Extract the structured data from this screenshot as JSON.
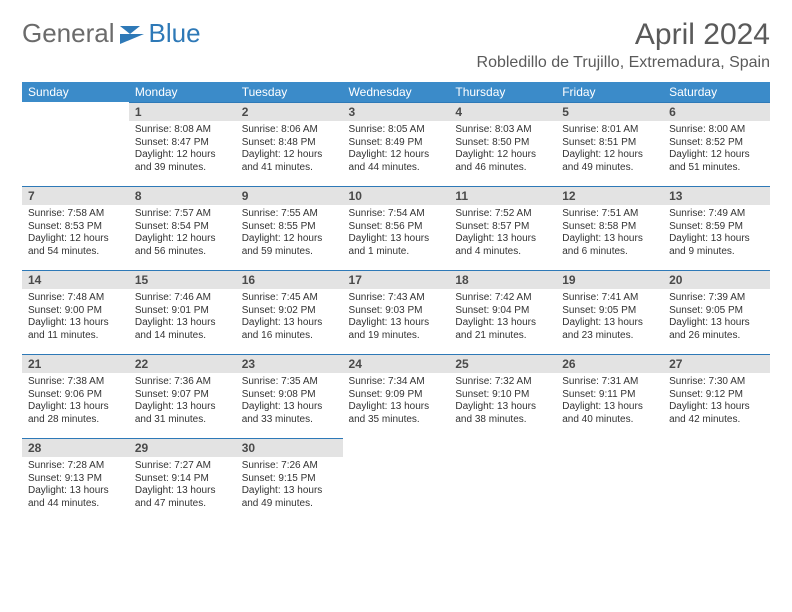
{
  "brand": {
    "part1": "General",
    "part2": "Blue"
  },
  "title": {
    "month": "April 2024",
    "location": "Robledillo de Trujillo, Extremadura, Spain"
  },
  "colors": {
    "header_bg": "#3b8bc9",
    "daynum_bg": "#e3e3e3",
    "day_border": "#2e79b7",
    "text": "#333333",
    "muted": "#5a5a5a"
  },
  "weekdays": [
    "Sunday",
    "Monday",
    "Tuesday",
    "Wednesday",
    "Thursday",
    "Friday",
    "Saturday"
  ],
  "weeks": [
    [
      {
        "n": "",
        "s": "",
        "t": "",
        "d1": "",
        "d2": "",
        "empty": true
      },
      {
        "n": "1",
        "s": "Sunrise: 8:08 AM",
        "t": "Sunset: 8:47 PM",
        "d1": "Daylight: 12 hours",
        "d2": "and 39 minutes."
      },
      {
        "n": "2",
        "s": "Sunrise: 8:06 AM",
        "t": "Sunset: 8:48 PM",
        "d1": "Daylight: 12 hours",
        "d2": "and 41 minutes."
      },
      {
        "n": "3",
        "s": "Sunrise: 8:05 AM",
        "t": "Sunset: 8:49 PM",
        "d1": "Daylight: 12 hours",
        "d2": "and 44 minutes."
      },
      {
        "n": "4",
        "s": "Sunrise: 8:03 AM",
        "t": "Sunset: 8:50 PM",
        "d1": "Daylight: 12 hours",
        "d2": "and 46 minutes."
      },
      {
        "n": "5",
        "s": "Sunrise: 8:01 AM",
        "t": "Sunset: 8:51 PM",
        "d1": "Daylight: 12 hours",
        "d2": "and 49 minutes."
      },
      {
        "n": "6",
        "s": "Sunrise: 8:00 AM",
        "t": "Sunset: 8:52 PM",
        "d1": "Daylight: 12 hours",
        "d2": "and 51 minutes."
      }
    ],
    [
      {
        "n": "7",
        "s": "Sunrise: 7:58 AM",
        "t": "Sunset: 8:53 PM",
        "d1": "Daylight: 12 hours",
        "d2": "and 54 minutes."
      },
      {
        "n": "8",
        "s": "Sunrise: 7:57 AM",
        "t": "Sunset: 8:54 PM",
        "d1": "Daylight: 12 hours",
        "d2": "and 56 minutes."
      },
      {
        "n": "9",
        "s": "Sunrise: 7:55 AM",
        "t": "Sunset: 8:55 PM",
        "d1": "Daylight: 12 hours",
        "d2": "and 59 minutes."
      },
      {
        "n": "10",
        "s": "Sunrise: 7:54 AM",
        "t": "Sunset: 8:56 PM",
        "d1": "Daylight: 13 hours",
        "d2": "and 1 minute."
      },
      {
        "n": "11",
        "s": "Sunrise: 7:52 AM",
        "t": "Sunset: 8:57 PM",
        "d1": "Daylight: 13 hours",
        "d2": "and 4 minutes."
      },
      {
        "n": "12",
        "s": "Sunrise: 7:51 AM",
        "t": "Sunset: 8:58 PM",
        "d1": "Daylight: 13 hours",
        "d2": "and 6 minutes."
      },
      {
        "n": "13",
        "s": "Sunrise: 7:49 AM",
        "t": "Sunset: 8:59 PM",
        "d1": "Daylight: 13 hours",
        "d2": "and 9 minutes."
      }
    ],
    [
      {
        "n": "14",
        "s": "Sunrise: 7:48 AM",
        "t": "Sunset: 9:00 PM",
        "d1": "Daylight: 13 hours",
        "d2": "and 11 minutes."
      },
      {
        "n": "15",
        "s": "Sunrise: 7:46 AM",
        "t": "Sunset: 9:01 PM",
        "d1": "Daylight: 13 hours",
        "d2": "and 14 minutes."
      },
      {
        "n": "16",
        "s": "Sunrise: 7:45 AM",
        "t": "Sunset: 9:02 PM",
        "d1": "Daylight: 13 hours",
        "d2": "and 16 minutes."
      },
      {
        "n": "17",
        "s": "Sunrise: 7:43 AM",
        "t": "Sunset: 9:03 PM",
        "d1": "Daylight: 13 hours",
        "d2": "and 19 minutes."
      },
      {
        "n": "18",
        "s": "Sunrise: 7:42 AM",
        "t": "Sunset: 9:04 PM",
        "d1": "Daylight: 13 hours",
        "d2": "and 21 minutes."
      },
      {
        "n": "19",
        "s": "Sunrise: 7:41 AM",
        "t": "Sunset: 9:05 PM",
        "d1": "Daylight: 13 hours",
        "d2": "and 23 minutes."
      },
      {
        "n": "20",
        "s": "Sunrise: 7:39 AM",
        "t": "Sunset: 9:05 PM",
        "d1": "Daylight: 13 hours",
        "d2": "and 26 minutes."
      }
    ],
    [
      {
        "n": "21",
        "s": "Sunrise: 7:38 AM",
        "t": "Sunset: 9:06 PM",
        "d1": "Daylight: 13 hours",
        "d2": "and 28 minutes."
      },
      {
        "n": "22",
        "s": "Sunrise: 7:36 AM",
        "t": "Sunset: 9:07 PM",
        "d1": "Daylight: 13 hours",
        "d2": "and 31 minutes."
      },
      {
        "n": "23",
        "s": "Sunrise: 7:35 AM",
        "t": "Sunset: 9:08 PM",
        "d1": "Daylight: 13 hours",
        "d2": "and 33 minutes."
      },
      {
        "n": "24",
        "s": "Sunrise: 7:34 AM",
        "t": "Sunset: 9:09 PM",
        "d1": "Daylight: 13 hours",
        "d2": "and 35 minutes."
      },
      {
        "n": "25",
        "s": "Sunrise: 7:32 AM",
        "t": "Sunset: 9:10 PM",
        "d1": "Daylight: 13 hours",
        "d2": "and 38 minutes."
      },
      {
        "n": "26",
        "s": "Sunrise: 7:31 AM",
        "t": "Sunset: 9:11 PM",
        "d1": "Daylight: 13 hours",
        "d2": "and 40 minutes."
      },
      {
        "n": "27",
        "s": "Sunrise: 7:30 AM",
        "t": "Sunset: 9:12 PM",
        "d1": "Daylight: 13 hours",
        "d2": "and 42 minutes."
      }
    ],
    [
      {
        "n": "28",
        "s": "Sunrise: 7:28 AM",
        "t": "Sunset: 9:13 PM",
        "d1": "Daylight: 13 hours",
        "d2": "and 44 minutes."
      },
      {
        "n": "29",
        "s": "Sunrise: 7:27 AM",
        "t": "Sunset: 9:14 PM",
        "d1": "Daylight: 13 hours",
        "d2": "and 47 minutes."
      },
      {
        "n": "30",
        "s": "Sunrise: 7:26 AM",
        "t": "Sunset: 9:15 PM",
        "d1": "Daylight: 13 hours",
        "d2": "and 49 minutes."
      },
      {
        "n": "",
        "s": "",
        "t": "",
        "d1": "",
        "d2": "",
        "empty": true
      },
      {
        "n": "",
        "s": "",
        "t": "",
        "d1": "",
        "d2": "",
        "empty": true
      },
      {
        "n": "",
        "s": "",
        "t": "",
        "d1": "",
        "d2": "",
        "empty": true
      },
      {
        "n": "",
        "s": "",
        "t": "",
        "d1": "",
        "d2": "",
        "empty": true
      }
    ]
  ]
}
